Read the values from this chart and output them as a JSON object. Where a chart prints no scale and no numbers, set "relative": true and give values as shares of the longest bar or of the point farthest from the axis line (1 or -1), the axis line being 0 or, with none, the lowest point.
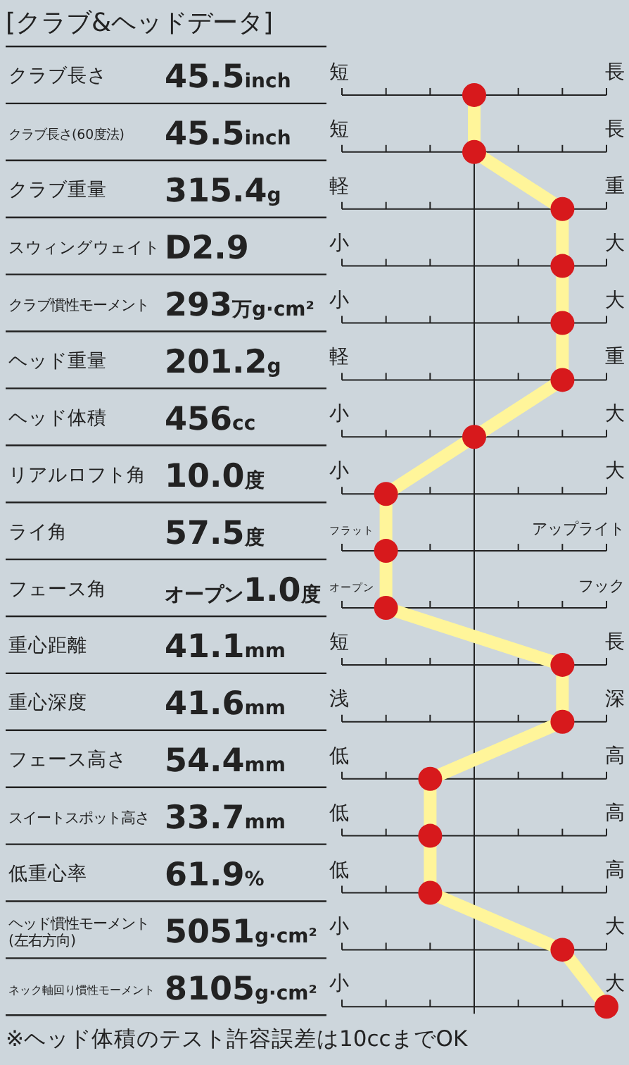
{
  "chart_data": {
    "type": "line",
    "orientation": "horizontal",
    "relative": true,
    "title": "[クラブ&ヘッドデータ]",
    "categories": [
      "クラブ長さ",
      "クラブ長さ(60度法)",
      "クラブ重量",
      "スウィングウェイト",
      "クラブ慣性モーメント",
      "ヘッド重量",
      "ヘッド体積",
      "リアルロフト角",
      "ライ角",
      "フェース角",
      "重心距離",
      "重心深度",
      "フェース高さ",
      "スイートスポット高さ",
      "低重心率",
      "ヘッド慣性モーメント\n(左右方向)",
      "ネック軸回り慣性モーメント"
    ],
    "series": [
      {
        "color": "#fff59a",
        "values": [
          0,
          0,
          0.667,
          0.667,
          0.667,
          0.667,
          0,
          -0.667,
          -0.667,
          -0.667,
          0.667,
          0.667,
          -0.333,
          -0.333,
          -0.333,
          0.667,
          1
        ],
        "colors": [
          "#d7191c",
          "#d7191c",
          "#d7191c",
          "#d7191c",
          "#d7191c",
          "#d7191c",
          "#d7191c",
          "#d7191c",
          "#d7191c",
          "#d7191c",
          "#d7191c",
          "#d7191c",
          "#d7191c",
          "#d7191c",
          "#d7191c",
          "#d7191c",
          "#d7191c"
        ]
      }
    ],
    "marker": "circle",
    "line_style": "solid",
    "grid": "y",
    "annotations": [
      "45.5inch",
      "45.5inch",
      "315.4g",
      "D2.9",
      "293万g·cm²",
      "201.2g",
      "456cc",
      "10.0度",
      "57.5度",
      "オープン1.0度",
      "41.1mm",
      "41.6mm",
      "54.4mm",
      "33.7mm",
      "61.9%",
      "5051g·cm²",
      "8105g·cm²",
      "短",
      "長",
      "短",
      "長",
      "軽",
      "重",
      "小",
      "大",
      "小",
      "大",
      "軽",
      "重",
      "小",
      "大",
      "小",
      "大",
      "フラット",
      "アップライト",
      "オープン",
      "フック",
      "短",
      "長",
      "浅",
      "深",
      "低",
      "高",
      "低",
      "高",
      "低",
      "高",
      "小",
      "大",
      "小",
      "大",
      "※ヘッド体積のテスト許容誤差は10ccまでOK"
    ]
  }
}
